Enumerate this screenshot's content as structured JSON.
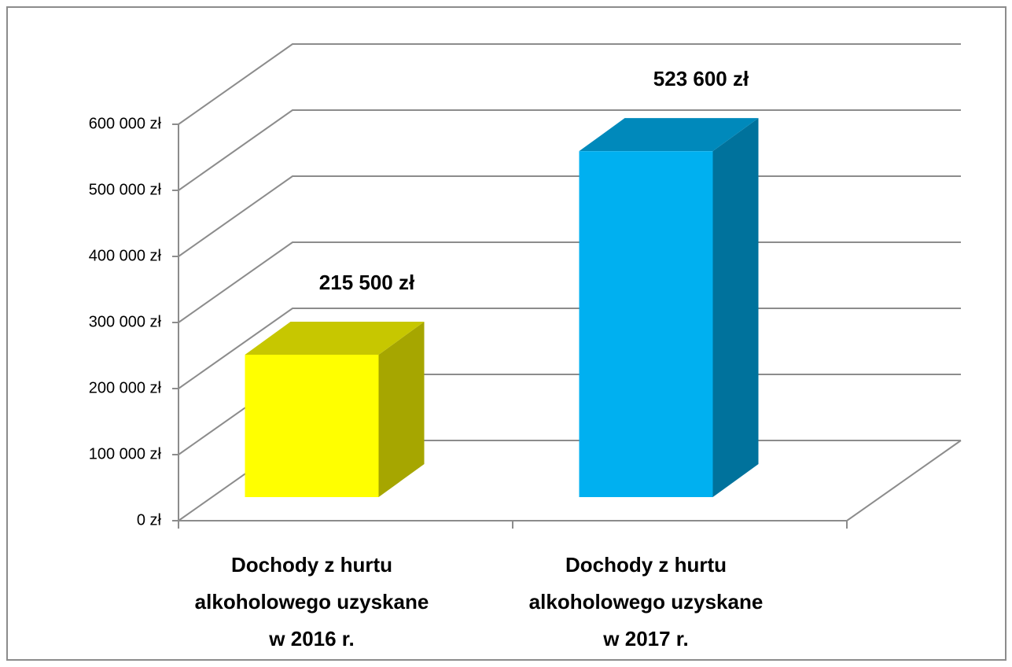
{
  "chart_data": {
    "type": "bar3d",
    "categories": [
      "Dochody z hurtu alkoholowego uzyskane w 2016 r.",
      "Dochody z hurtu alkoholowego uzyskane w 2017 r."
    ],
    "values": [
      215500,
      523600
    ],
    "value_labels": [
      "215 500 zł",
      "523 600 zł"
    ],
    "colors": [
      "#ffff00",
      "#00b0f0"
    ],
    "ylim": [
      0,
      600000
    ],
    "yticks": [
      {
        "value": 0,
        "label": "0 zł"
      },
      {
        "value": 100000,
        "label": "100 000 zł"
      },
      {
        "value": 200000,
        "label": "200 000 zł"
      },
      {
        "value": 300000,
        "label": "300 000 zł"
      },
      {
        "value": 400000,
        "label": "400 000 zł"
      },
      {
        "value": 500000,
        "label": "500 000 zł"
      },
      {
        "value": 600000,
        "label": "600 000 zł"
      }
    ],
    "grid": true
  }
}
